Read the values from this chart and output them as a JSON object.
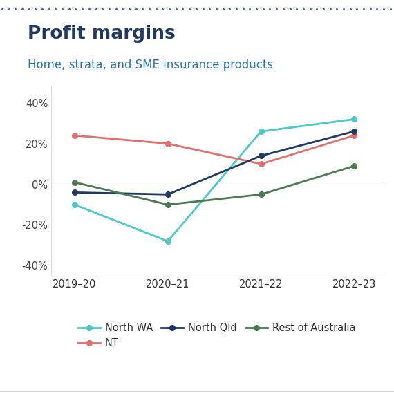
{
  "title": "Profit margins",
  "subtitle": "Home, strata, and SME insurance products",
  "title_color": "#1f3864",
  "subtitle_color": "#2e75b6",
  "x_labels": [
    "2019–20",
    "2020–21",
    "2021–22",
    "2022–23"
  ],
  "x_values": [
    0,
    1,
    2,
    3
  ],
  "series": [
    {
      "name": "North WA",
      "color": "#4ec9c9",
      "values": [
        -0.1,
        -0.28,
        0.26,
        0.32
      ]
    },
    {
      "name": "NT",
      "color": "#e07070",
      "values": [
        0.24,
        0.2,
        0.1,
        0.24
      ]
    },
    {
      "name": "North Qld",
      "color": "#1f3864",
      "values": [
        -0.04,
        -0.05,
        0.14,
        0.26
      ]
    },
    {
      "name": "Rest of Australia",
      "color": "#4a7a50",
      "values": [
        0.01,
        -0.1,
        -0.05,
        0.09
      ]
    }
  ],
  "ylim": [
    -0.45,
    0.48
  ],
  "yticks": [
    -0.4,
    -0.2,
    0.0,
    0.2,
    0.4
  ],
  "ytick_labels": [
    "-40%",
    "-20%",
    "0%",
    "20%",
    "40%"
  ],
  "background_color": "#ffffff",
  "dotted_border_color": "#3a6b9e",
  "legend_fontsize": 10.5,
  "title_fontsize": 19,
  "subtitle_fontsize": 12,
  "axis_fontsize": 10.5
}
